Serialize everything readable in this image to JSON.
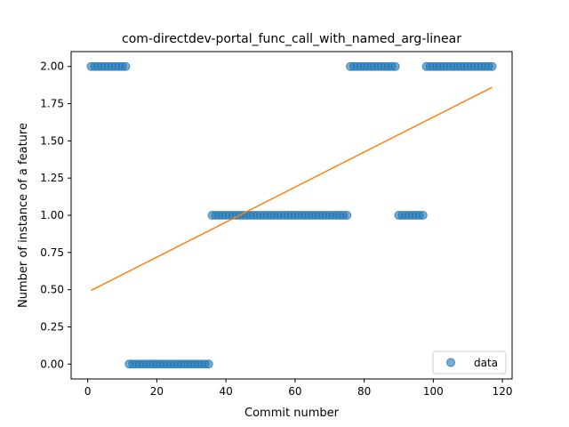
{
  "chart_data": {
    "type": "scatter",
    "title": "com-directdev-portal_func_call_with_named_arg-linear",
    "xlabel": "Commit number",
    "ylabel": "Number of instance of a feature",
    "xlim": [
      -4.8,
      122.8
    ],
    "ylim": [
      -0.1,
      2.1
    ],
    "x_ticks": [
      0,
      20,
      40,
      60,
      80,
      100,
      120
    ],
    "y_ticks": [
      0.0,
      0.25,
      0.5,
      0.75,
      1.0,
      1.25,
      1.5,
      1.75,
      2.0
    ],
    "x_tick_labels": [
      "0",
      "20",
      "40",
      "60",
      "80",
      "100",
      "120"
    ],
    "y_tick_labels": [
      "0.00",
      "0.25",
      "0.50",
      "0.75",
      "1.00",
      "1.25",
      "1.50",
      "1.75",
      "2.00"
    ],
    "legend": {
      "position": "lower-right",
      "entries": [
        "data"
      ]
    },
    "colors": {
      "points": "#1f77b4",
      "fit": "#ff7f0e"
    },
    "series": [
      {
        "name": "data",
        "kind": "points",
        "ranges": [
          {
            "from": 1,
            "to": 11,
            "y": 2
          },
          {
            "from": 12,
            "to": 35,
            "y": 0
          },
          {
            "from": 36,
            "to": 75,
            "y": 1
          },
          {
            "from": 76,
            "to": 89,
            "y": 2
          },
          {
            "from": 90,
            "to": 97,
            "y": 1
          },
          {
            "from": 98,
            "to": 117,
            "y": 2
          }
        ]
      },
      {
        "name": "fit",
        "kind": "line",
        "x": [
          1,
          117
        ],
        "y": [
          0.495,
          1.86
        ]
      }
    ]
  }
}
